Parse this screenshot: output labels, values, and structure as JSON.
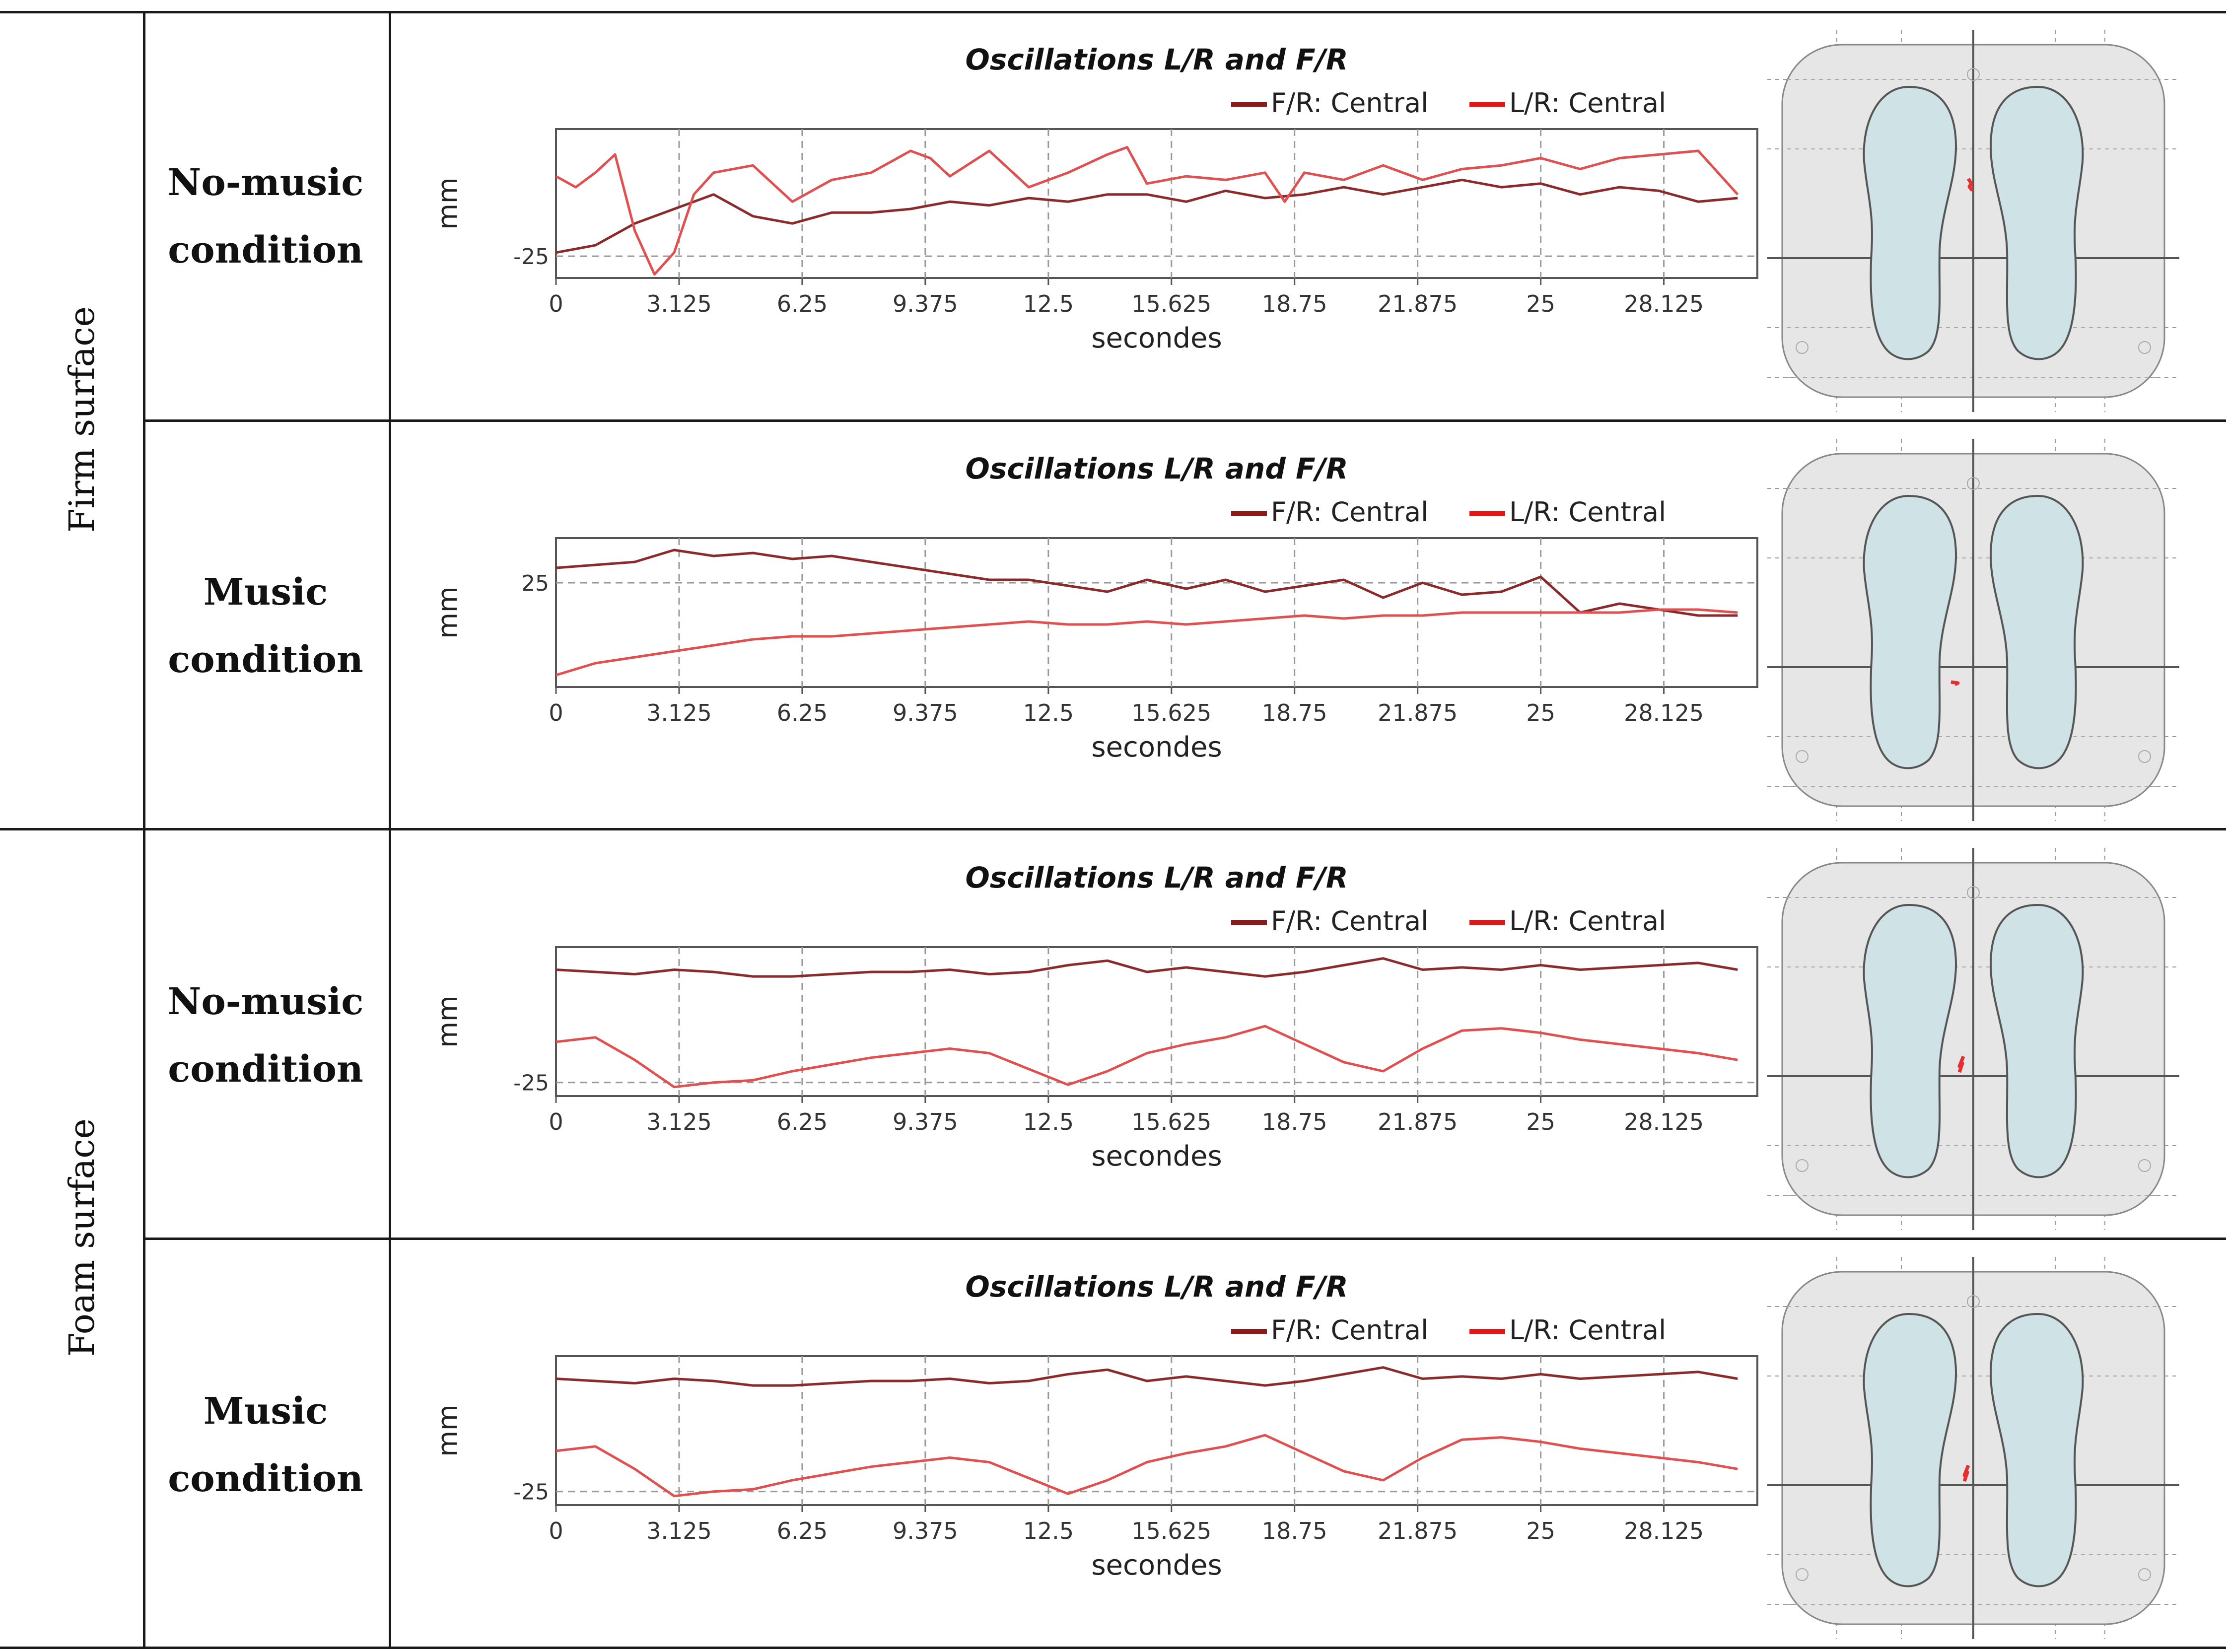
{
  "table": {
    "groups": [
      {
        "surface": "Firm surface",
        "rows": [
          {
            "condition_line1": "No-music",
            "condition_line2": "condition"
          },
          {
            "condition_line1": "Music",
            "condition_line2": "condition"
          }
        ]
      },
      {
        "surface": "Foam surface",
        "rows": [
          {
            "condition_line1": "No-music",
            "condition_line2": "condition"
          },
          {
            "condition_line1": "Music",
            "condition_line2": "condition"
          }
        ]
      }
    ]
  },
  "colors": {
    "fr_line": "#8b2a2a",
    "lr_line": "#e05050",
    "legend_fr": "#8b1a1a",
    "legend_lr": "#e01818",
    "axis": "#555555",
    "grid": "#999999",
    "plate": "#e6e6e6",
    "foot": "#cfe3e6",
    "cop": "#e53030"
  },
  "chart_data": [
    {
      "type": "line",
      "panel": "Firm surface / No-music condition",
      "title": "Oscillations L/R and F/R",
      "xlabel": "secondes",
      "ylabel": "mm",
      "xlim": [
        0,
        30.5
      ],
      "ylim": [
        -31,
        10
      ],
      "ref_line": -25,
      "ref_label": "-25",
      "x_ticks": [
        "0",
        "3.125",
        "6.25",
        "9.375",
        "12.5",
        "15.625",
        "18.75",
        "21.875",
        "25",
        "28.125"
      ],
      "legend": [
        "F/R: Central",
        "L/R: Central"
      ],
      "series": [
        {
          "name": "F/R: Central",
          "x": [
            0,
            1,
            2,
            3,
            4,
            5,
            6,
            7,
            8,
            9,
            10,
            11,
            12,
            13,
            14,
            15,
            16,
            17,
            18,
            19,
            20,
            21,
            22,
            23,
            24,
            25,
            26,
            27,
            28,
            29,
            30
          ],
          "values": [
            -24,
            -22,
            -16,
            -12,
            -8,
            -14,
            -16,
            -13,
            -13,
            -12,
            -10,
            -11,
            -9,
            -10,
            -8,
            -8,
            -10,
            -7,
            -9,
            -8,
            -6,
            -8,
            -6,
            -4,
            -6,
            -5,
            -8,
            -6,
            -7,
            -10,
            -9
          ]
        },
        {
          "name": "L/R: Central",
          "x": [
            0,
            0.5,
            1,
            1.5,
            2,
            2.5,
            3,
            3.5,
            4,
            5,
            6,
            7,
            8,
            9,
            9.5,
            10,
            11,
            12,
            13,
            14,
            14.5,
            15,
            16,
            17,
            18,
            18.5,
            19,
            20,
            21,
            22,
            23,
            24,
            25,
            26,
            27,
            28,
            29,
            30
          ],
          "values": [
            -3,
            -6,
            -2,
            3,
            -18,
            -30,
            -24,
            -8,
            -2,
            0,
            -10,
            -4,
            -2,
            4,
            2,
            -3,
            4,
            -6,
            -2,
            3,
            5,
            -5,
            -3,
            -4,
            -2,
            -10,
            -2,
            -4,
            0,
            -4,
            -1,
            0,
            2,
            -1,
            2,
            3,
            4,
            -8
          ]
        }
      ]
    },
    {
      "type": "line",
      "panel": "Firm surface / Music condition",
      "title": "Oscillations L/R and F/R",
      "xlabel": "secondes",
      "ylabel": "mm",
      "xlim": [
        0,
        30.5
      ],
      "ylim": [
        -10,
        40
      ],
      "ref_line": 25,
      "ref_label": "25",
      "x_ticks": [
        "0",
        "3.125",
        "6.25",
        "9.375",
        "12.5",
        "15.625",
        "18.75",
        "21.875",
        "25",
        "28.125"
      ],
      "legend": [
        "F/R: Central",
        "L/R: Central"
      ],
      "series": [
        {
          "name": "F/R: Central",
          "x": [
            0,
            1,
            2,
            3,
            4,
            5,
            6,
            7,
            8,
            9,
            10,
            11,
            12,
            13,
            14,
            15,
            16,
            17,
            18,
            19,
            20,
            21,
            22,
            23,
            24,
            25,
            26,
            27,
            28,
            29,
            30
          ],
          "values": [
            30,
            31,
            32,
            36,
            34,
            35,
            33,
            34,
            32,
            30,
            28,
            26,
            26,
            24,
            22,
            26,
            23,
            26,
            22,
            24,
            26,
            20,
            25,
            21,
            22,
            27,
            15,
            18,
            16,
            14,
            14
          ]
        },
        {
          "name": "L/R: Central",
          "x": [
            0,
            1,
            2,
            3,
            4,
            5,
            6,
            7,
            8,
            9,
            10,
            11,
            12,
            13,
            14,
            15,
            16,
            17,
            18,
            19,
            20,
            21,
            22,
            23,
            24,
            25,
            26,
            27,
            28,
            29,
            30
          ],
          "values": [
            -6,
            -2,
            0,
            2,
            4,
            6,
            7,
            7,
            8,
            9,
            10,
            11,
            12,
            11,
            11,
            12,
            11,
            12,
            13,
            14,
            13,
            14,
            14,
            15,
            15,
            15,
            15,
            15,
            16,
            16,
            15
          ]
        }
      ]
    },
    {
      "type": "line",
      "panel": "Foam surface / No-music condition",
      "title": "Oscillations L/R and F/R",
      "xlabel": "secondes",
      "ylabel": "mm",
      "xlim": [
        0,
        30.5
      ],
      "ylim": [
        -31,
        35
      ],
      "ref_line": -25,
      "ref_label": "-25",
      "x_ticks": [
        "0",
        "3.125",
        "6.25",
        "9.375",
        "12.5",
        "15.625",
        "18.75",
        "21.875",
        "25",
        "28.125"
      ],
      "legend": [
        "F/R: Central",
        "L/R: Central"
      ],
      "series": [
        {
          "name": "F/R: Central",
          "x": [
            0,
            1,
            2,
            3,
            4,
            5,
            6,
            7,
            8,
            9,
            10,
            11,
            12,
            13,
            14,
            15,
            16,
            17,
            18,
            19,
            20,
            21,
            22,
            23,
            24,
            25,
            26,
            27,
            28,
            29,
            30
          ],
          "values": [
            25,
            24,
            23,
            25,
            24,
            22,
            22,
            23,
            24,
            24,
            25,
            23,
            24,
            27,
            29,
            24,
            26,
            24,
            22,
            24,
            27,
            30,
            25,
            26,
            25,
            27,
            25,
            26,
            27,
            28,
            25
          ]
        },
        {
          "name": "L/R: Central",
          "x": [
            0,
            1,
            2,
            3,
            4,
            5,
            6,
            7,
            8,
            9,
            10,
            11,
            12,
            13,
            14,
            15,
            16,
            17,
            18,
            19,
            20,
            21,
            22,
            23,
            24,
            25,
            26,
            27,
            28,
            29,
            30
          ],
          "values": [
            -7,
            -5,
            -15,
            -27,
            -25,
            -24,
            -20,
            -17,
            -14,
            -12,
            -10,
            -12,
            -19,
            -26,
            -20,
            -12,
            -8,
            -5,
            0,
            -8,
            -16,
            -20,
            -10,
            -2,
            -1,
            -3,
            -6,
            -8,
            -10,
            -12,
            -15
          ]
        }
      ]
    },
    {
      "type": "line",
      "panel": "Foam surface / Music condition",
      "title": "Oscillations L/R and F/R",
      "xlabel": "secondes",
      "ylabel": "mm",
      "xlim": [
        0,
        30.5
      ],
      "ylim": [
        -31,
        35
      ],
      "ref_line": -25,
      "ref_label": "-25",
      "x_ticks": [
        "0",
        "3.125",
        "6.25",
        "9.375",
        "12.5",
        "15.625",
        "18.75",
        "21.875",
        "25",
        "28.125"
      ],
      "legend": [
        "F/R: Central",
        "L/R: Central"
      ],
      "series": [
        {
          "name": "F/R: Central",
          "x": [
            0,
            1,
            2,
            3,
            4,
            5,
            6,
            7,
            8,
            9,
            10,
            11,
            12,
            13,
            14,
            15,
            16,
            17,
            18,
            19,
            20,
            21,
            22,
            23,
            24,
            25,
            26,
            27,
            28,
            29,
            30
          ],
          "values": [
            25,
            24,
            23,
            25,
            24,
            22,
            22,
            23,
            24,
            24,
            25,
            23,
            24,
            27,
            29,
            24,
            26,
            24,
            22,
            24,
            27,
            30,
            25,
            26,
            25,
            27,
            25,
            26,
            27,
            28,
            25
          ]
        },
        {
          "name": "L/R: Central",
          "x": [
            0,
            1,
            2,
            3,
            4,
            5,
            6,
            7,
            8,
            9,
            10,
            11,
            12,
            13,
            14,
            15,
            16,
            17,
            18,
            19,
            20,
            21,
            22,
            23,
            24,
            25,
            26,
            27,
            28,
            29,
            30
          ],
          "values": [
            -7,
            -5,
            -15,
            -27,
            -25,
            -24,
            -20,
            -17,
            -14,
            -12,
            -10,
            -12,
            -19,
            -26,
            -20,
            -12,
            -8,
            -5,
            0,
            -8,
            -16,
            -20,
            -10,
            -2,
            -1,
            -3,
            -6,
            -8,
            -10,
            -12,
            -15
          ]
        }
      ]
    }
  ]
}
